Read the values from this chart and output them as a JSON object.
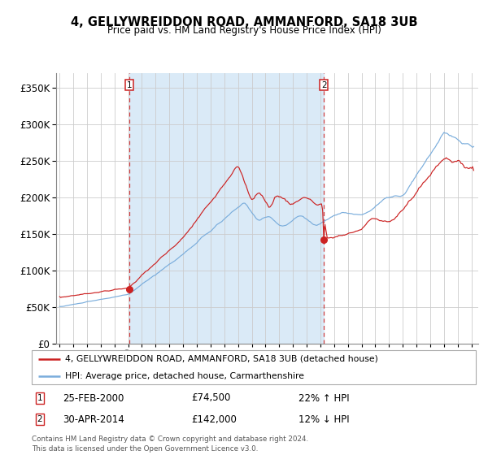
{
  "title": "4, GELLYWREIDDON ROAD, AMMANFORD, SA18 3UB",
  "subtitle": "Price paid vs. HM Land Registry's House Price Index (HPI)",
  "legend_line1": "4, GELLYWREIDDON ROAD, AMMANFORD, SA18 3UB (detached house)",
  "legend_line2": "HPI: Average price, detached house, Carmarthenshire",
  "sale1_date": "25-FEB-2000",
  "sale1_price": 74500,
  "sale1_hpi": "22% ↑ HPI",
  "sale2_date": "30-APR-2014",
  "sale2_price": 142000,
  "sale2_hpi": "12% ↓ HPI",
  "footnote": "Contains HM Land Registry data © Crown copyright and database right 2024.\nThis data is licensed under the Open Government Licence v3.0.",
  "hpi_color": "#7aaddc",
  "price_color": "#cc2222",
  "bg_fill": "#daeaf7",
  "grid_color": "#cccccc",
  "ylim": [
    0,
    370000
  ],
  "yticks": [
    0,
    50000,
    100000,
    150000,
    200000,
    250000,
    300000,
    350000
  ],
  "start_year": 1994.75,
  "end_year": 2025.5
}
